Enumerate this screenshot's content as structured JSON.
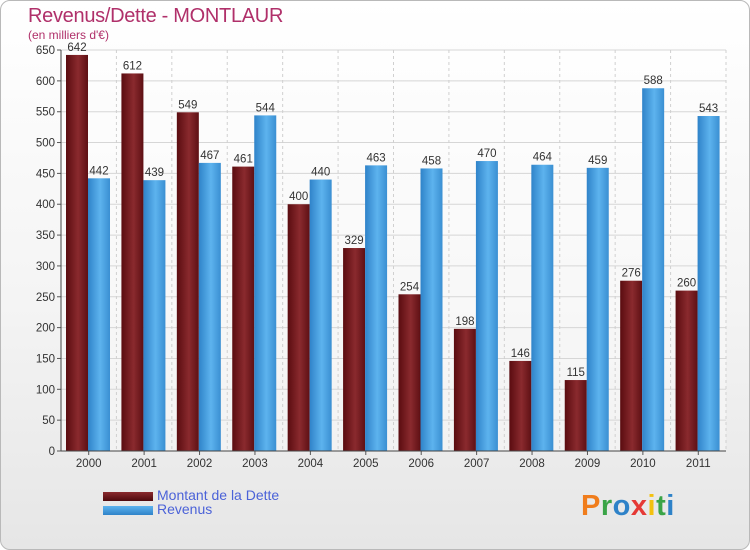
{
  "chart_data": {
    "type": "bar",
    "title": "Revenus/Dette - MONTLAUR",
    "subtitle": "(en milliers d'€)",
    "categories": [
      "2000",
      "2001",
      "2002",
      "2003",
      "2004",
      "2005",
      "2006",
      "2007",
      "2008",
      "2009",
      "2010",
      "2011"
    ],
    "series": [
      {
        "name": "Montant de la Dette",
        "color": "#7a1e22",
        "values": [
          642,
          612,
          549,
          461,
          400,
          329,
          254,
          198,
          146,
          115,
          276,
          260
        ]
      },
      {
        "name": "Revenus",
        "color": "#4ba3e6",
        "values": [
          442,
          439,
          467,
          544,
          440,
          463,
          458,
          470,
          464,
          459,
          588,
          543
        ]
      }
    ],
    "ylim": [
      0,
      650
    ],
    "yticks": [
      0,
      50,
      100,
      150,
      200,
      250,
      300,
      350,
      400,
      450,
      500,
      550,
      600,
      650
    ],
    "grid": true,
    "legend_position": "bottom-left"
  },
  "branding": {
    "logo_letters": [
      "P",
      "r",
      "o",
      "x",
      "i",
      "t",
      "i"
    ],
    "logo_colors": [
      "#f07d1c",
      "#3aa447",
      "#2e82c8",
      "#e53935",
      "#f3c10f",
      "#3aa447",
      "#2e82c8"
    ]
  }
}
